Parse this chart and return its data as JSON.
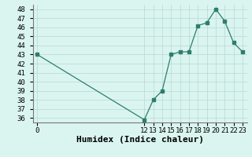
{
  "xlabel": "Humidex (Indice chaleur)",
  "x_values": [
    0,
    12,
    13,
    14,
    15,
    16,
    17,
    18,
    19,
    20,
    21,
    22,
    23
  ],
  "y_values": [
    43,
    35.8,
    38,
    39,
    43,
    43.3,
    43.3,
    46.2,
    46.5,
    48,
    46.7,
    44.3,
    43.3
  ],
  "ylim": [
    35.5,
    48.5
  ],
  "yticks": [
    36,
    37,
    38,
    39,
    40,
    41,
    42,
    43,
    44,
    45,
    46,
    47,
    48
  ],
  "xtick_labels": [
    "0",
    "12131415161718192021222 3"
  ],
  "line_color": "#2e7d6e",
  "marker": "s",
  "marker_size": 2.5,
  "bg_color": "#daf5ef",
  "grid_major_color": "#b8d8d2",
  "grid_minor_color": "#cce8e3",
  "xlabel_fontsize": 8,
  "tick_fontsize": 6.5,
  "xlim_left": -0.5,
  "xlim_right": 23.5
}
